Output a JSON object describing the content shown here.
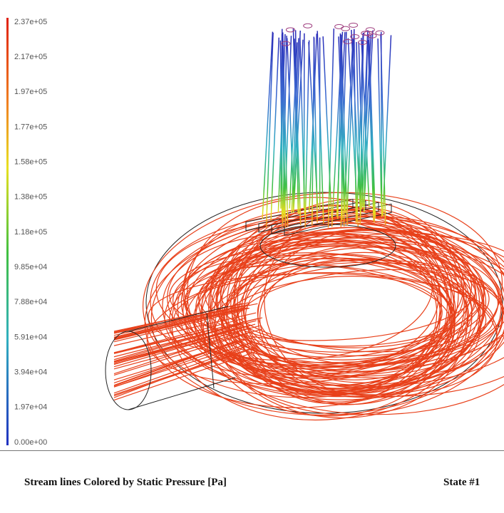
{
  "colorbar": {
    "labels": [
      "2.37e+05",
      "2.17e+05",
      "1.97e+05",
      "1.77e+05",
      "1.58e+05",
      "1.38e+05",
      "1.18e+05",
      "9.85e+04",
      "7.88e+04",
      "5.91e+04",
      "3.94e+04",
      "1.97e+04",
      "0.00e+00"
    ]
  },
  "caption": {
    "title": "Stream lines Colored by Static Pressure [Pa]",
    "state": "State #1"
  }
}
